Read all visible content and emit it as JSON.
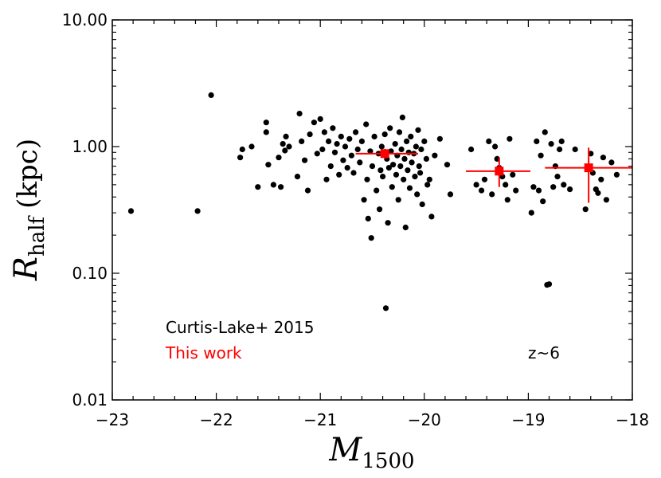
{
  "chart_data": {
    "type": "scatter",
    "x_label_main": "M",
    "x_label_sub": "1500",
    "y_label_main": "R",
    "y_label_sub": "half",
    "y_label_unit": "(kpc)",
    "xlim": [
      -23,
      -18
    ],
    "ylim": [
      0.01,
      10
    ],
    "y_scale": "log",
    "grid": false,
    "x_ticks": [
      -23,
      -22,
      -21,
      -20,
      -19,
      -18
    ],
    "x_tick_labels": [
      "−23",
      "−22",
      "−21",
      "−20",
      "−19",
      "−18"
    ],
    "y_ticks": [
      0.01,
      0.1,
      1,
      10
    ],
    "y_tick_labels": [
      "0.01",
      "0.10",
      "1.00",
      "10.00"
    ],
    "legend": [
      {
        "label": "Curtis-Lake+ 2015",
        "color": "#000000"
      },
      {
        "label": "This work",
        "color": "#ff0000"
      }
    ],
    "annotation": "z~6",
    "series": [
      {
        "name": "Curtis-Lake+ 2015",
        "color": "#000000",
        "marker": "circle",
        "points": [
          [
            -22.82,
            0.31
          ],
          [
            -22.18,
            0.31
          ],
          [
            -22.05,
            2.55
          ],
          [
            -21.77,
            0.82
          ],
          [
            -21.75,
            0.95
          ],
          [
            -21.66,
            1.0
          ],
          [
            -21.6,
            0.48
          ],
          [
            -21.52,
            1.55
          ],
          [
            -21.52,
            1.3
          ],
          [
            -21.5,
            0.72
          ],
          [
            -21.45,
            0.5
          ],
          [
            -21.4,
            0.82
          ],
          [
            -21.38,
            0.48
          ],
          [
            -21.36,
            1.05
          ],
          [
            -21.34,
            0.93
          ],
          [
            -21.33,
            1.2
          ],
          [
            -21.3,
            1.0
          ],
          [
            -21.22,
            0.58
          ],
          [
            -21.2,
            1.82
          ],
          [
            -21.18,
            1.1
          ],
          [
            -21.15,
            0.78
          ],
          [
            -21.12,
            0.45
          ],
          [
            -21.1,
            1.25
          ],
          [
            -21.06,
            1.55
          ],
          [
            -21.03,
            0.88
          ],
          [
            -21.0,
            1.65
          ],
          [
            -20.98,
            0.95
          ],
          [
            -20.96,
            1.3
          ],
          [
            -20.94,
            0.55
          ],
          [
            -20.92,
            1.1
          ],
          [
            -20.9,
            0.7
          ],
          [
            -20.88,
            1.4
          ],
          [
            -20.86,
            0.9
          ],
          [
            -20.84,
            1.05
          ],
          [
            -20.82,
            0.6
          ],
          [
            -20.8,
            1.2
          ],
          [
            -20.78,
            0.78
          ],
          [
            -20.76,
            1.0
          ],
          [
            -20.74,
            0.68
          ],
          [
            -20.72,
            1.15
          ],
          [
            -20.7,
            0.85
          ],
          [
            -20.68,
            0.62
          ],
          [
            -20.66,
            1.3
          ],
          [
            -20.64,
            0.95
          ],
          [
            -20.62,
            0.75
          ],
          [
            -20.6,
            1.1
          ],
          [
            -20.58,
            0.38
          ],
          [
            -20.56,
            1.5
          ],
          [
            -20.55,
            0.55
          ],
          [
            -20.54,
            0.27
          ],
          [
            -20.52,
            0.92
          ],
          [
            -20.51,
            0.19
          ],
          [
            -20.5,
            0.7
          ],
          [
            -20.48,
            1.2
          ],
          [
            -20.46,
            0.45
          ],
          [
            -20.44,
            0.88
          ],
          [
            -20.43,
            0.32
          ],
          [
            -20.42,
            0.65
          ],
          [
            -20.41,
            1.0
          ],
          [
            -20.4,
            0.58
          ],
          [
            -20.38,
            1.25
          ],
          [
            -20.37,
            0.053
          ],
          [
            -20.36,
            0.8
          ],
          [
            -20.35,
            0.25
          ],
          [
            -20.34,
            0.68
          ],
          [
            -20.33,
            1.4
          ],
          [
            -20.32,
            0.92
          ],
          [
            -20.31,
            0.48
          ],
          [
            -20.3,
            0.72
          ],
          [
            -20.28,
            1.05
          ],
          [
            -20.27,
            0.6
          ],
          [
            -20.26,
            0.85
          ],
          [
            -20.25,
            0.38
          ],
          [
            -20.24,
            1.3
          ],
          [
            -20.23,
            0.7
          ],
          [
            -20.22,
            0.95
          ],
          [
            -20.21,
            1.7
          ],
          [
            -20.2,
            0.55
          ],
          [
            -20.19,
            0.8
          ],
          [
            -20.18,
            0.23
          ],
          [
            -20.17,
            1.1
          ],
          [
            -20.16,
            0.65
          ],
          [
            -20.15,
            0.9
          ],
          [
            -20.14,
            0.47
          ],
          [
            -20.13,
            1.2
          ],
          [
            -20.12,
            0.75
          ],
          [
            -20.1,
            0.88
          ],
          [
            -20.09,
            0.58
          ],
          [
            -20.08,
            1.0
          ],
          [
            -20.07,
            0.42
          ],
          [
            -20.06,
            1.35
          ],
          [
            -20.05,
            0.7
          ],
          [
            -20.04,
            0.62
          ],
          [
            -20.03,
            0.95
          ],
          [
            -20.02,
            0.35
          ],
          [
            -20.0,
            1.1
          ],
          [
            -19.98,
            0.8
          ],
          [
            -19.97,
            0.5
          ],
          [
            -19.95,
            0.55
          ],
          [
            -19.93,
            0.28
          ],
          [
            -19.9,
            0.85
          ],
          [
            -19.85,
            1.15
          ],
          [
            -19.78,
            0.72
          ],
          [
            -19.75,
            0.42
          ],
          [
            -19.55,
            0.95
          ],
          [
            -19.5,
            0.5
          ],
          [
            -19.45,
            0.45
          ],
          [
            -19.42,
            0.55
          ],
          [
            -19.38,
            1.1
          ],
          [
            -19.35,
            0.42
          ],
          [
            -19.32,
            1.0
          ],
          [
            -19.3,
            0.8
          ],
          [
            -19.28,
            0.68
          ],
          [
            -19.25,
            0.58
          ],
          [
            -19.22,
            0.5
          ],
          [
            -19.2,
            0.38
          ],
          [
            -19.18,
            1.15
          ],
          [
            -19.15,
            0.6
          ],
          [
            -19.12,
            0.45
          ],
          [
            -18.97,
            0.3
          ],
          [
            -18.95,
            0.48
          ],
          [
            -18.92,
            1.1
          ],
          [
            -18.9,
            0.45
          ],
          [
            -18.88,
            0.85
          ],
          [
            -18.86,
            0.37
          ],
          [
            -18.84,
            1.3
          ],
          [
            -18.82,
            0.081
          ],
          [
            -18.8,
            0.082
          ],
          [
            -18.78,
            1.05
          ],
          [
            -18.76,
            0.48
          ],
          [
            -18.74,
            0.7
          ],
          [
            -18.72,
            0.58
          ],
          [
            -18.7,
            0.95
          ],
          [
            -18.68,
            1.1
          ],
          [
            -18.66,
            0.5
          ],
          [
            -18.6,
            0.46
          ],
          [
            -18.55,
            0.95
          ],
          [
            -18.45,
            0.32
          ],
          [
            -18.4,
            0.88
          ],
          [
            -18.38,
            0.62
          ],
          [
            -18.35,
            0.46
          ],
          [
            -18.33,
            0.43
          ],
          [
            -18.3,
            0.55
          ],
          [
            -18.28,
            0.82
          ],
          [
            -18.25,
            0.38
          ],
          [
            -18.2,
            0.75
          ],
          [
            -18.15,
            0.6
          ]
        ]
      },
      {
        "name": "This work",
        "color": "#ff0000",
        "marker": "square",
        "points": [
          {
            "x": -20.38,
            "y": 0.88,
            "xerr": [
              0.28,
              0.32
            ],
            "yerr": [
              0.08,
              0.08
            ]
          },
          {
            "x": -19.28,
            "y": 0.64,
            "xerr": [
              0.32,
              0.3
            ],
            "yerr": [
              0.16,
              0.18
            ]
          },
          {
            "x": -18.42,
            "y": 0.68,
            "xerr": [
              0.42,
              0.42
            ],
            "yerr": [
              0.32,
              0.3
            ]
          }
        ]
      }
    ]
  }
}
